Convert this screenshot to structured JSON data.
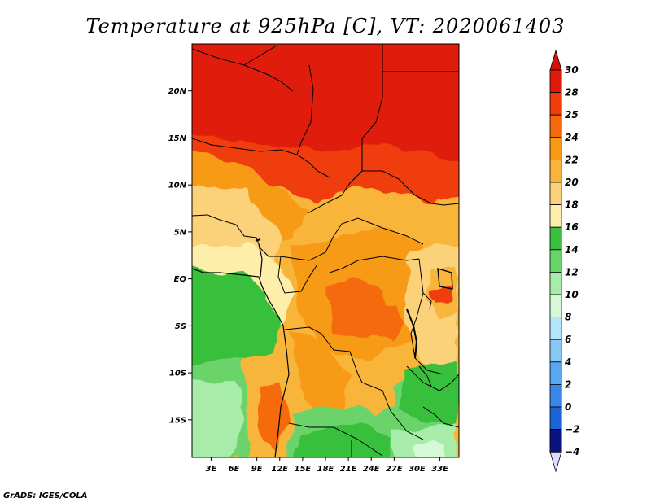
{
  "title": "Temperature at 925hPa [C], VT: 2020061403",
  "credit": "GrADS: IGES/COLA",
  "map": {
    "lat_axis": [
      {
        "label": "20N",
        "value": 20
      },
      {
        "label": "15N",
        "value": 15
      },
      {
        "label": "10N",
        "value": 10
      },
      {
        "label": "5N",
        "value": 5
      },
      {
        "label": "EQ",
        "value": 0
      },
      {
        "label": "5S",
        "value": -5
      },
      {
        "label": "10S",
        "value": -10
      },
      {
        "label": "15S",
        "value": -15
      }
    ],
    "lon_axis": [
      {
        "label": "3E",
        "value": 3
      },
      {
        "label": "6E",
        "value": 6
      },
      {
        "label": "9E",
        "value": 9
      },
      {
        "label": "12E",
        "value": 12
      },
      {
        "label": "15E",
        "value": 15
      },
      {
        "label": "18E",
        "value": 18
      },
      {
        "label": "21E",
        "value": 21
      },
      {
        "label": "24E",
        "value": 24
      },
      {
        "label": "27E",
        "value": 27
      },
      {
        "label": "30E",
        "value": 30
      },
      {
        "label": "33E",
        "value": 33
      }
    ],
    "lon_range": [
      0.5,
      35.5
    ],
    "lat_range": [
      -19,
      25
    ]
  },
  "colorbar": {
    "levels": [
      "30",
      "28",
      "25",
      "24",
      "22",
      "20",
      "18",
      "16",
      "14",
      "12",
      "10",
      "8",
      "6",
      "4",
      "2",
      "0",
      "−2",
      "−4"
    ],
    "colors": [
      "#e01a0a",
      "#f03c0a",
      "#f56a0c",
      "#f79a14",
      "#f8b53a",
      "#fbd27a",
      "#fdeeaa",
      "#39c03c",
      "#6ad46a",
      "#a8ecaa",
      "#d6f8d6",
      "#b4e6fa",
      "#88c8f5",
      "#5aa6ef",
      "#3a86e6",
      "#1a64d8",
      "#0c44c0",
      "#0a1480"
    ],
    "top_arrow_color": "#d8100a",
    "bottom_arrow_color": "#dcdcfc"
  }
}
